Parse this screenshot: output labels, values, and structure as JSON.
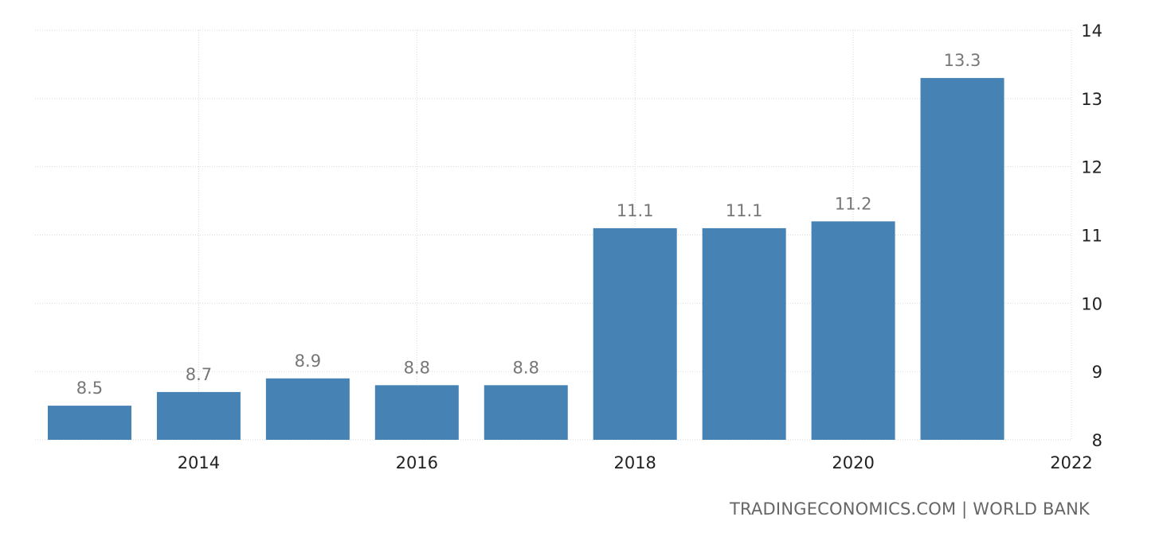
{
  "chart_data": {
    "type": "bar",
    "categories": [
      2013,
      2014,
      2015,
      2016,
      2017,
      2018,
      2019,
      2020,
      2021
    ],
    "values": [
      8.5,
      8.7,
      8.9,
      8.8,
      8.8,
      11.1,
      11.1,
      11.2,
      13.3
    ],
    "data_labels": [
      "8.5",
      "8.7",
      "8.9",
      "8.8",
      "8.8",
      "11.1",
      "11.1",
      "11.2",
      "13.3"
    ],
    "x_ticks": [
      "2014",
      "2016",
      "2018",
      "2020",
      "2022"
    ],
    "y_ticks": [
      "8",
      "9",
      "10",
      "11",
      "12",
      "13",
      "14"
    ],
    "ylim": [
      8,
      14
    ],
    "y_axis_position": "right",
    "grid": true,
    "bar_color": "#4682b4",
    "label_color": "#777777",
    "title": "",
    "xlabel": "",
    "ylabel": ""
  },
  "source": {
    "text": "TRADINGECONOMICS.COM | WORLD BANK"
  }
}
